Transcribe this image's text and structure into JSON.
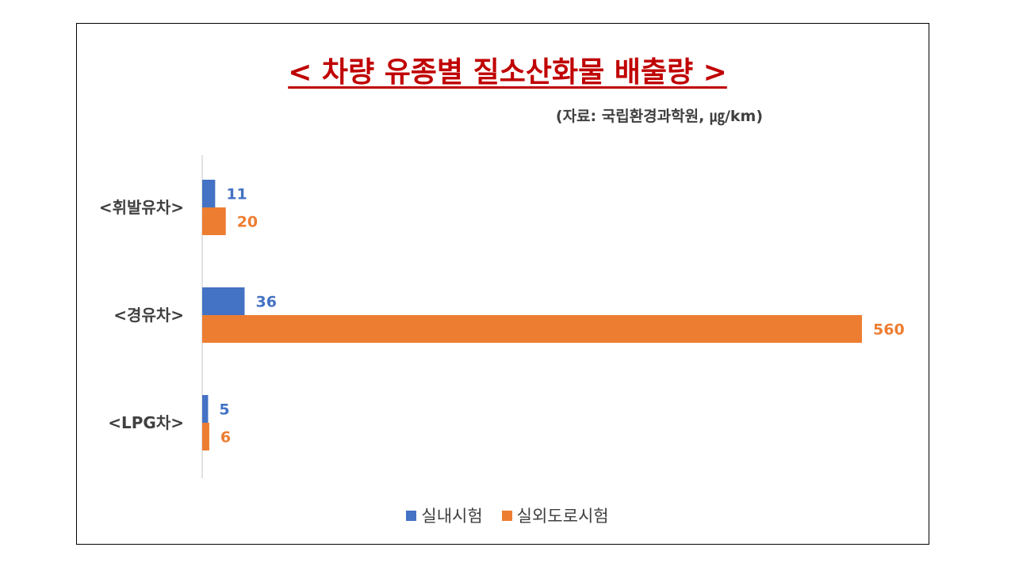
{
  "colors": {
    "indoor": "#4472c4",
    "outdoor": "#ed7d31",
    "title": "#c00000"
  },
  "chart_data": {
    "type": "bar",
    "orientation": "horizontal",
    "title": "< 차량 유종별 질소산화물 배출량 >",
    "subtitle": "(자료: 국립환경과학원, ㎍/km)",
    "categories": [
      "<휘발유차>",
      "<경유차>",
      "<LPG차>"
    ],
    "series": [
      {
        "name": "실내시험",
        "values": [
          11,
          36,
          5
        ]
      },
      {
        "name": "실외도로시험",
        "values": [
          20,
          560,
          6
        ]
      }
    ],
    "xlim": [
      0,
      560
    ],
    "grid": false,
    "legend": "bottom",
    "data_labels": true
  }
}
